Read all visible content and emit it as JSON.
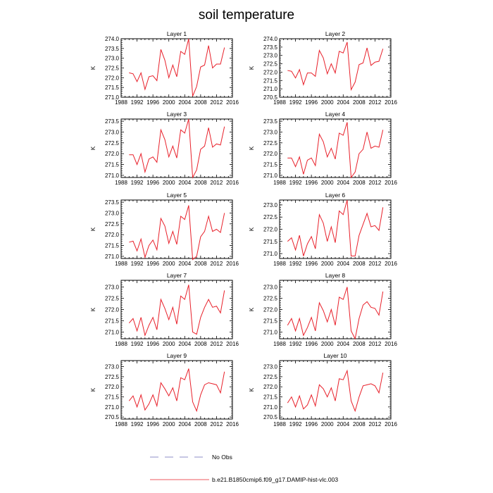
{
  "chart_data": {
    "type": "line",
    "title": "soil temperature",
    "x_ticks": [
      1988,
      1992,
      1996,
      2000,
      2004,
      2008,
      2012,
      2016
    ],
    "xlim": [
      1988,
      2016
    ],
    "grid": false,
    "legend": {
      "placement": "bottom-center",
      "entries": [
        {
          "label": "No Obs",
          "style": "dashed",
          "color": "#6b6bb8"
        },
        {
          "label": "b.e21.B1850cmip6.f09_g17.DAMIP-hist-vlc.003",
          "style": "solid",
          "color": "#e8202a"
        }
      ]
    },
    "x": [
      1990,
      1991,
      1992,
      1993,
      1994,
      1995,
      1996,
      1997,
      1998,
      1999,
      2000,
      2001,
      2002,
      2003,
      2004,
      2005,
      2006,
      2007,
      2008,
      2009,
      2010,
      2011,
      2012,
      2013,
      2014
    ],
    "panels": [
      {
        "title": "Layer 1",
        "ylabel": "K",
        "ylim": [
          271.0,
          274.0
        ],
        "y_ticks": [
          "271.0",
          "271.5",
          "272.0",
          "272.5",
          "273.0",
          "273.5",
          "274.0"
        ],
        "values": [
          272.25,
          272.2,
          271.8,
          272.25,
          271.4,
          272.05,
          272.1,
          271.85,
          273.45,
          272.9,
          272.0,
          272.65,
          272.05,
          273.35,
          273.2,
          274.0,
          271.05,
          271.55,
          272.55,
          272.65,
          273.65,
          272.5,
          272.7,
          272.7,
          273.55
        ]
      },
      {
        "title": "Layer 2",
        "ylabel": "K",
        "ylim": [
          270.5,
          274.0
        ],
        "y_ticks": [
          "270.5",
          "271.0",
          "271.5",
          "272.0",
          "272.5",
          "273.0",
          "273.5",
          "274.0"
        ],
        "values": [
          272.1,
          272.05,
          271.65,
          272.15,
          271.25,
          271.95,
          271.95,
          271.75,
          273.3,
          272.85,
          271.9,
          272.5,
          271.95,
          273.25,
          273.15,
          273.8,
          270.95,
          271.4,
          272.45,
          272.55,
          273.45,
          272.4,
          272.6,
          272.65,
          273.4
        ]
      },
      {
        "title": "Layer 3",
        "ylabel": "K",
        "ylim": [
          270.9,
          273.6
        ],
        "y_ticks": [
          "271.0",
          "271.5",
          "272.0",
          "272.5",
          "273.0",
          "273.5"
        ],
        "values": [
          271.95,
          271.95,
          271.5,
          272.0,
          271.15,
          271.75,
          271.85,
          271.6,
          273.1,
          272.65,
          271.85,
          272.35,
          271.8,
          273.1,
          272.95,
          273.6,
          270.9,
          271.25,
          272.2,
          272.35,
          273.2,
          272.3,
          272.45,
          272.4,
          273.25
        ]
      },
      {
        "title": "Layer 4",
        "ylabel": "K",
        "ylim": [
          270.9,
          273.6
        ],
        "y_ticks": [
          "271.0",
          "271.5",
          "272.0",
          "272.5",
          "273.0",
          "273.5"
        ],
        "values": [
          271.8,
          271.8,
          271.4,
          271.85,
          271.05,
          271.7,
          271.8,
          271.45,
          272.9,
          272.55,
          271.85,
          272.25,
          271.75,
          272.95,
          272.85,
          273.45,
          270.9,
          271.15,
          272.0,
          272.2,
          273.0,
          272.25,
          272.35,
          272.3,
          273.1
        ]
      },
      {
        "title": "Layer 5",
        "ylabel": "K",
        "ylim": [
          270.9,
          273.6
        ],
        "y_ticks": [
          "271.0",
          "271.5",
          "272.0",
          "272.5",
          "273.0",
          "273.5"
        ],
        "values": [
          271.65,
          271.7,
          271.25,
          271.8,
          270.95,
          271.5,
          271.75,
          271.3,
          272.75,
          272.4,
          271.6,
          272.15,
          271.55,
          272.85,
          272.7,
          273.35,
          270.85,
          271.0,
          271.9,
          272.15,
          272.85,
          272.15,
          272.25,
          272.1,
          273.0
        ]
      },
      {
        "title": "Layer 6",
        "ylabel": "K",
        "ylim": [
          270.8,
          273.2
        ],
        "y_ticks": [
          "271.0",
          "271.5",
          "272.0",
          "272.5",
          "273.0"
        ],
        "values": [
          271.5,
          271.65,
          271.15,
          271.75,
          270.9,
          271.4,
          271.7,
          271.2,
          272.6,
          272.25,
          271.5,
          272.1,
          271.45,
          272.75,
          272.6,
          273.2,
          270.9,
          270.9,
          271.75,
          272.2,
          272.65,
          272.1,
          272.15,
          271.95,
          272.9
        ]
      },
      {
        "title": "Layer 7",
        "ylabel": "K",
        "ylim": [
          270.7,
          273.3
        ],
        "y_ticks": [
          "271.0",
          "271.5",
          "272.0",
          "272.5",
          "273.0"
        ],
        "values": [
          271.4,
          271.6,
          271.05,
          271.65,
          270.85,
          271.3,
          271.65,
          271.1,
          272.45,
          272.05,
          271.55,
          272.1,
          271.35,
          272.6,
          272.45,
          273.1,
          271.0,
          270.9,
          271.65,
          272.1,
          272.45,
          272.1,
          272.15,
          271.85,
          272.85
        ]
      },
      {
        "title": "Layer 8",
        "ylabel": "K",
        "ylim": [
          270.7,
          273.3
        ],
        "y_ticks": [
          "271.0",
          "271.5",
          "272.0",
          "272.5",
          "273.0"
        ],
        "values": [
          271.3,
          271.6,
          271.05,
          271.6,
          270.85,
          271.2,
          271.65,
          271.05,
          272.3,
          271.95,
          271.45,
          272.0,
          271.3,
          272.55,
          272.45,
          273.0,
          271.05,
          270.7,
          271.6,
          272.2,
          272.35,
          272.1,
          272.05,
          271.75,
          272.8
        ]
      },
      {
        "title": "Layer 9",
        "ylabel": "K",
        "ylim": [
          270.4,
          273.3
        ],
        "y_ticks": [
          "270.5",
          "271.0",
          "271.5",
          "272.0",
          "272.5",
          "273.0"
        ],
        "values": [
          271.3,
          271.55,
          271.0,
          271.6,
          270.85,
          271.15,
          271.6,
          271.05,
          272.2,
          271.9,
          271.55,
          271.95,
          271.3,
          272.45,
          272.35,
          272.9,
          271.25,
          270.8,
          271.6,
          272.1,
          272.2,
          272.15,
          272.1,
          271.7,
          272.75
        ]
      },
      {
        "title": "Layer 10",
        "ylabel": "K",
        "ylim": [
          270.4,
          273.3
        ],
        "y_ticks": [
          "270.5",
          "271.0",
          "271.5",
          "272.0",
          "272.5",
          "273.0"
        ],
        "values": [
          271.2,
          271.5,
          271.0,
          271.55,
          270.9,
          271.1,
          271.6,
          271.05,
          272.1,
          271.9,
          271.5,
          271.95,
          271.3,
          272.4,
          272.35,
          272.8,
          271.3,
          270.8,
          271.5,
          272.05,
          272.1,
          272.15,
          272.05,
          271.7,
          272.7
        ]
      }
    ]
  }
}
